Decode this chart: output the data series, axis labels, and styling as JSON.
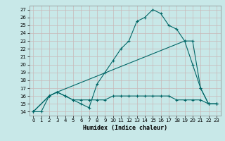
{
  "xlabel": "Humidex (Indice chaleur)",
  "bg_color": "#c8e8e8",
  "grid_color": "#d4d4d4",
  "line_color": "#006666",
  "xlim": [
    -0.5,
    23.5
  ],
  "ylim": [
    13.5,
    27.5
  ],
  "xticks": [
    0,
    1,
    2,
    3,
    4,
    5,
    6,
    7,
    8,
    9,
    10,
    11,
    12,
    13,
    14,
    15,
    16,
    17,
    18,
    19,
    20,
    21,
    22,
    23
  ],
  "yticks": [
    14,
    15,
    16,
    17,
    18,
    19,
    20,
    21,
    22,
    23,
    24,
    25,
    26,
    27
  ],
  "line1_x": [
    0,
    1,
    2,
    3,
    4,
    5,
    6,
    7,
    8,
    9,
    10,
    11,
    12,
    13,
    14,
    15,
    16,
    17,
    18,
    19,
    20,
    21,
    22,
    23
  ],
  "line1_y": [
    14,
    14,
    16,
    16.5,
    16,
    15.5,
    15,
    14.5,
    17.5,
    19,
    20.5,
    22,
    23,
    25.5,
    26,
    27,
    26.5,
    25,
    24.5,
    23,
    20,
    17,
    15,
    15
  ],
  "line2_x": [
    0,
    2,
    3,
    4,
    5,
    6,
    7,
    8,
    9,
    10,
    11,
    12,
    13,
    14,
    15,
    16,
    17,
    18,
    19,
    20,
    21,
    22,
    23
  ],
  "line2_y": [
    14,
    16,
    16.5,
    16,
    15.5,
    15.5,
    15.5,
    15.5,
    15.5,
    16,
    16,
    16,
    16,
    16,
    16,
    16,
    16,
    15.5,
    15.5,
    15.5,
    15.5,
    15,
    15
  ],
  "line3_x": [
    0,
    2,
    3,
    19,
    20,
    21,
    22,
    23
  ],
  "line3_y": [
    14,
    16,
    16.5,
    23,
    23,
    17,
    15,
    15
  ]
}
